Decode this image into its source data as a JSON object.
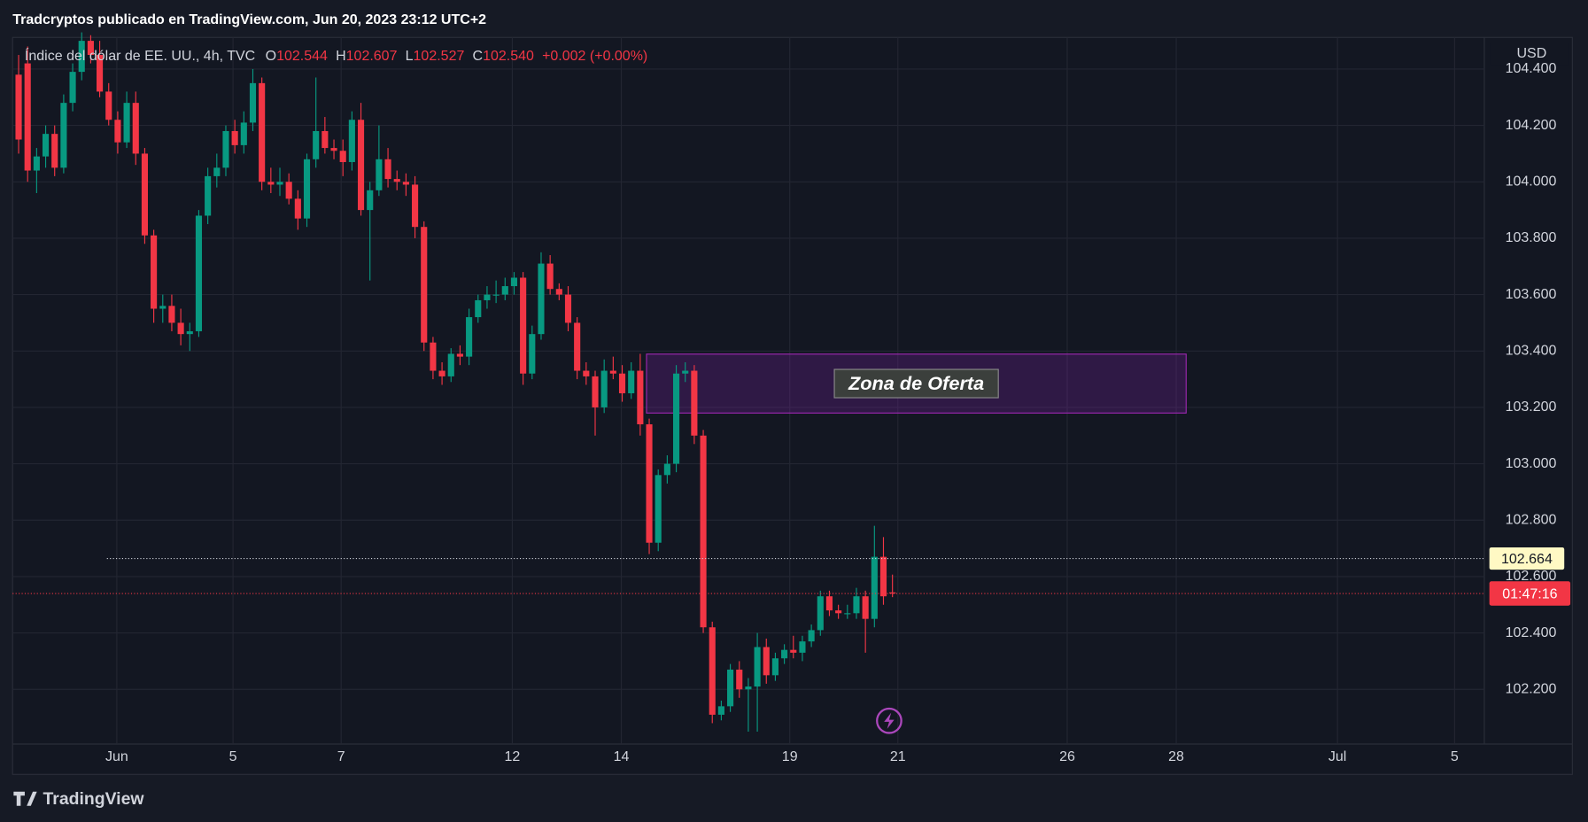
{
  "header": {
    "publisher": "Tradcryptos publicado en TradingView.com, Jun 20, 2023 23:12 UTC+2"
  },
  "footer": {
    "brand": "TradingView"
  },
  "chart_data": {
    "type": "candlestick",
    "title": "Índice del dólar de EE. UU., 4h, TVC",
    "legend": [
      {
        "label": "O",
        "value": "102.544"
      },
      {
        "label": "H",
        "value": "102.607"
      },
      {
        "label": "L",
        "value": "102.527"
      },
      {
        "label": "C",
        "value": "102.540"
      }
    ],
    "change": "+0.002 (+0.00%)",
    "currency": "USD",
    "colors": {
      "up": "#089981",
      "down": "#f23645"
    },
    "grid": true,
    "ohlc": [
      [
        104.38,
        104.45,
        104.1,
        104.15
      ],
      [
        104.42,
        104.48,
        104.0,
        104.04
      ],
      [
        104.04,
        104.12,
        103.96,
        104.09
      ],
      [
        104.09,
        104.2,
        104.05,
        104.17
      ],
      [
        104.17,
        104.2,
        104.02,
        104.05
      ],
      [
        104.05,
        104.31,
        104.03,
        104.28
      ],
      [
        104.28,
        104.42,
        104.25,
        104.39
      ],
      [
        104.39,
        104.53,
        104.36,
        104.5
      ],
      [
        104.5,
        104.52,
        104.42,
        104.45
      ],
      [
        104.45,
        104.5,
        104.3,
        104.32
      ],
      [
        104.32,
        104.35,
        104.2,
        104.22
      ],
      [
        104.22,
        104.25,
        104.1,
        104.14
      ],
      [
        104.14,
        104.32,
        104.12,
        104.28
      ],
      [
        104.28,
        104.32,
        104.06,
        104.1
      ],
      [
        104.1,
        104.12,
        103.78,
        103.81
      ],
      [
        103.81,
        103.83,
        103.5,
        103.55
      ],
      [
        103.55,
        103.6,
        103.5,
        103.56
      ],
      [
        103.56,
        103.6,
        103.47,
        103.5
      ],
      [
        103.5,
        103.55,
        103.42,
        103.46
      ],
      [
        103.46,
        103.5,
        103.4,
        103.47
      ],
      [
        103.47,
        103.9,
        103.45,
        103.88
      ],
      [
        103.88,
        104.05,
        103.85,
        104.02
      ],
      [
        104.02,
        104.1,
        103.98,
        104.05
      ],
      [
        104.05,
        104.2,
        104.02,
        104.18
      ],
      [
        104.18,
        104.22,
        104.1,
        104.13
      ],
      [
        104.13,
        104.25,
        104.1,
        104.21
      ],
      [
        104.21,
        104.4,
        104.18,
        104.35
      ],
      [
        104.35,
        104.37,
        103.97,
        104.0
      ],
      [
        104.0,
        104.05,
        103.96,
        103.99
      ],
      [
        103.99,
        104.05,
        103.95,
        104.0
      ],
      [
        104.0,
        104.03,
        103.92,
        103.94
      ],
      [
        103.94,
        103.97,
        103.83,
        103.87
      ],
      [
        103.87,
        104.1,
        103.84,
        104.08
      ],
      [
        104.08,
        104.37,
        104.05,
        104.18
      ],
      [
        104.18,
        104.23,
        104.1,
        104.12
      ],
      [
        104.12,
        104.15,
        104.08,
        104.11
      ],
      [
        104.11,
        104.15,
        104.02,
        104.07
      ],
      [
        104.07,
        104.25,
        104.04,
        104.22
      ],
      [
        104.22,
        104.28,
        103.88,
        103.9
      ],
      [
        103.9,
        104.0,
        103.65,
        103.97
      ],
      [
        103.97,
        104.2,
        103.95,
        104.08
      ],
      [
        104.08,
        104.12,
        103.98,
        104.01
      ],
      [
        104.01,
        104.04,
        103.97,
        104.0
      ],
      [
        104.0,
        104.03,
        103.95,
        103.99
      ],
      [
        103.99,
        104.02,
        103.8,
        103.84
      ],
      [
        103.84,
        103.86,
        103.4,
        103.43
      ],
      [
        103.43,
        103.45,
        103.3,
        103.33
      ],
      [
        103.33,
        103.36,
        103.28,
        103.31
      ],
      [
        103.31,
        103.41,
        103.29,
        103.39
      ],
      [
        103.39,
        103.42,
        103.35,
        103.38
      ],
      [
        103.38,
        103.55,
        103.35,
        103.52
      ],
      [
        103.52,
        103.6,
        103.5,
        103.58
      ],
      [
        103.58,
        103.63,
        103.55,
        103.6
      ],
      [
        103.6,
        103.65,
        103.57,
        103.6
      ],
      [
        103.6,
        103.66,
        103.58,
        103.63
      ],
      [
        103.63,
        103.68,
        103.6,
        103.66
      ],
      [
        103.66,
        103.68,
        103.28,
        103.32
      ],
      [
        103.32,
        103.49,
        103.3,
        103.46
      ],
      [
        103.46,
        103.75,
        103.44,
        103.71
      ],
      [
        103.71,
        103.74,
        103.6,
        103.62
      ],
      [
        103.62,
        103.64,
        103.58,
        103.6
      ],
      [
        103.6,
        103.63,
        103.47,
        103.5
      ],
      [
        103.5,
        103.52,
        103.3,
        103.33
      ],
      [
        103.33,
        103.36,
        103.28,
        103.31
      ],
      [
        103.31,
        103.33,
        103.1,
        103.2
      ],
      [
        103.2,
        103.37,
        103.18,
        103.33
      ],
      [
        103.33,
        103.38,
        103.3,
        103.32
      ],
      [
        103.32,
        103.35,
        103.22,
        103.25
      ],
      [
        103.25,
        103.36,
        103.23,
        103.33
      ],
      [
        103.33,
        103.39,
        103.1,
        103.14
      ],
      [
        103.14,
        103.16,
        102.68,
        102.72
      ],
      [
        102.72,
        102.98,
        102.69,
        102.96
      ],
      [
        102.96,
        103.03,
        102.93,
        103.0
      ],
      [
        103.0,
        103.35,
        102.97,
        103.32
      ],
      [
        103.32,
        103.36,
        103.29,
        103.33
      ],
      [
        103.33,
        103.35,
        103.07,
        103.1
      ],
      [
        103.1,
        103.12,
        102.4,
        102.42
      ],
      [
        102.42,
        102.44,
        102.08,
        102.11
      ],
      [
        102.11,
        102.16,
        102.09,
        102.14
      ],
      [
        102.14,
        102.29,
        102.12,
        102.27
      ],
      [
        102.27,
        102.3,
        102.17,
        102.2
      ],
      [
        102.2,
        102.24,
        102.05,
        102.21
      ],
      [
        102.21,
        102.4,
        102.05,
        102.35
      ],
      [
        102.35,
        102.38,
        102.22,
        102.25
      ],
      [
        102.25,
        102.33,
        102.23,
        102.31
      ],
      [
        102.31,
        102.36,
        102.29,
        102.34
      ],
      [
        102.34,
        102.39,
        102.31,
        102.33
      ],
      [
        102.33,
        102.39,
        102.3,
        102.37
      ],
      [
        102.37,
        102.43,
        102.35,
        102.41
      ],
      [
        102.41,
        102.55,
        102.39,
        102.53
      ],
      [
        102.53,
        102.55,
        102.46,
        102.48
      ],
      [
        102.48,
        102.5,
        102.45,
        102.47
      ],
      [
        102.47,
        102.5,
        102.45,
        102.47
      ],
      [
        102.47,
        102.56,
        102.45,
        102.53
      ],
      [
        102.53,
        102.55,
        102.33,
        102.45
      ],
      [
        102.45,
        102.78,
        102.42,
        102.67
      ],
      [
        102.67,
        102.74,
        102.5,
        102.53
      ],
      [
        102.544,
        102.607,
        102.527,
        102.54
      ]
    ],
    "xlim": [
      -0.67,
      162.7
    ],
    "xticks": [
      {
        "value": 10.9,
        "label": "Jun"
      },
      {
        "value": 23.8,
        "label": "5"
      },
      {
        "value": 35.8,
        "label": "7"
      },
      {
        "value": 54.8,
        "label": "12"
      },
      {
        "value": 66.9,
        "label": "14"
      },
      {
        "value": 85.6,
        "label": "19"
      },
      {
        "value": 97.6,
        "label": "21"
      },
      {
        "value": 116.4,
        "label": "26"
      },
      {
        "value": 128.5,
        "label": "28"
      },
      {
        "value": 146.4,
        "label": "Jul"
      },
      {
        "value": 159.4,
        "label": "5"
      }
    ],
    "ylim": [
      102.006,
      104.512
    ],
    "yticks": [
      {
        "value": 102.2,
        "label": "102.200"
      },
      {
        "value": 102.4,
        "label": "102.400"
      },
      {
        "value": 102.6,
        "label": "102.600"
      },
      {
        "value": 102.8,
        "label": "102.800"
      },
      {
        "value": 103,
        "label": "103.000"
      },
      {
        "value": 103.2,
        "label": "103.200"
      },
      {
        "value": 103.4,
        "label": "103.400"
      },
      {
        "value": 103.6,
        "label": "103.600"
      },
      {
        "value": 103.8,
        "label": "103.800"
      },
      {
        "value": 104,
        "label": "104.000"
      },
      {
        "value": 104.2,
        "label": "104.200"
      },
      {
        "value": 104.4,
        "label": "104.400"
      }
    ],
    "zone": {
      "label": "Zona de Oferta",
      "x": [
        69.7,
        129.6
      ],
      "y": [
        103.18,
        103.389
      ]
    },
    "hline": {
      "value": 102.664,
      "start": 9.8
    },
    "countdown": "01:47:16"
  }
}
